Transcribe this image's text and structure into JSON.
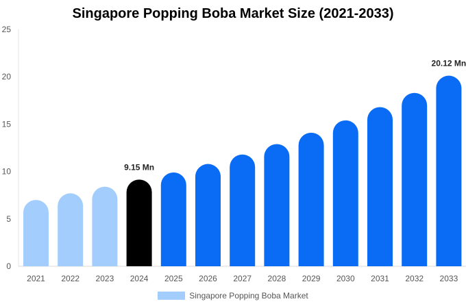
{
  "chart_data": {
    "type": "bar",
    "title": "Singapore Popping Boba Market Size (2021-2033)",
    "xlabel": "",
    "ylabel": "",
    "categories": [
      "2021",
      "2022",
      "2023",
      "2024",
      "2025",
      "2026",
      "2027",
      "2028",
      "2029",
      "2030",
      "2031",
      "2032",
      "2033"
    ],
    "series": [
      {
        "name": "Singapore Popping Boba Market",
        "values": [
          7.0,
          7.7,
          8.4,
          9.15,
          9.9,
          10.8,
          11.8,
          12.9,
          14.1,
          15.4,
          16.8,
          18.3,
          20.12
        ]
      }
    ],
    "bar_colors": [
      "#a3cdfd",
      "#a3cdfd",
      "#a3cdfd",
      "#000000",
      "#0a6cf5",
      "#0a6cf5",
      "#0a6cf5",
      "#0a6cf5",
      "#0a6cf5",
      "#0a6cf5",
      "#0a6cf5",
      "#0a6cf5",
      "#0a6cf5"
    ],
    "data_labels": [
      {
        "index": 3,
        "text": "9.15 Mn"
      },
      {
        "index": 12,
        "text": "20.12 Mn"
      }
    ],
    "ylim": [
      0,
      25
    ],
    "yticks": [
      0,
      5,
      10,
      15,
      20,
      25
    ],
    "grid": false,
    "legend_position": "bottom",
    "legend_color": "#a3cdfd"
  }
}
